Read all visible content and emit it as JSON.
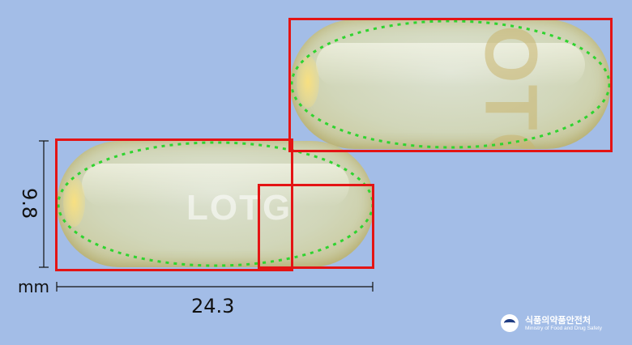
{
  "imprints": {
    "bottom_capsule": "LOTG",
    "top_capsule": "LOTG"
  },
  "dimensions": {
    "width": "24.3",
    "height": "9.8",
    "unit": "mm"
  },
  "logo": {
    "korean": "식품의약품안전처",
    "english": "Ministry of Food and Drug Safety"
  },
  "colors": {
    "background": "#a3bde7",
    "box": "#e41414",
    "contour": "#2fd42f"
  }
}
